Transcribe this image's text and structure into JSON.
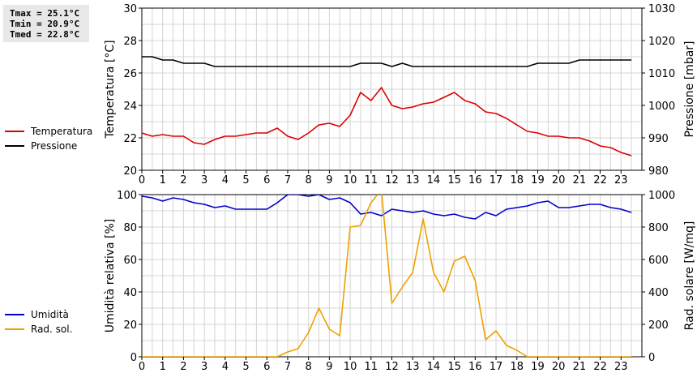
{
  "stats": {
    "tmax": "Tmax = 25.1°C",
    "tmin": "Tmin = 20.9°C",
    "tmed": "Tmed = 22.8°C"
  },
  "chart_data": [
    {
      "type": "line",
      "xlabel": "",
      "xlim": [
        0,
        24
      ],
      "x_ticks": [
        "0",
        "1",
        "2",
        "3",
        "4",
        "5",
        "6",
        "7",
        "8",
        "9",
        "10",
        "11",
        "12",
        "13",
        "14",
        "15",
        "16",
        "17",
        "18",
        "19",
        "20",
        "21",
        "22",
        "23"
      ],
      "ylabel_left": "Temperatura [°C]",
      "ylim_left": [
        20,
        30
      ],
      "yticks_left": [
        "20",
        "22",
        "24",
        "26",
        "28",
        "30"
      ],
      "ylabel_right": "Pressione [mbar]",
      "ylim_right": [
        980,
        1030
      ],
      "yticks_right": [
        "980",
        "990",
        "1000",
        "1010",
        "1020",
        "1030"
      ],
      "grid": true,
      "legend_position": "left",
      "series": [
        {
          "name": "Temperatura",
          "axis": "left",
          "color": "#dd0000",
          "x": [
            0,
            0.5,
            1,
            1.5,
            2,
            2.5,
            3,
            3.5,
            4,
            4.5,
            5,
            5.5,
            6,
            6.5,
            7,
            7.5,
            8,
            8.5,
            9,
            9.5,
            10,
            10.5,
            11,
            11.5,
            12,
            12.5,
            13,
            13.5,
            14,
            14.5,
            15,
            15.5,
            16,
            16.5,
            17,
            17.5,
            18,
            18.5,
            19,
            19.5,
            20,
            20.5,
            21,
            21.5,
            22,
            22.5,
            23,
            23.5
          ],
          "values": [
            22.3,
            22.1,
            22.2,
            22.1,
            22.1,
            21.7,
            21.6,
            21.9,
            22.1,
            22.1,
            22.2,
            22.3,
            22.3,
            22.6,
            22.1,
            21.9,
            22.3,
            22.8,
            22.9,
            22.7,
            23.4,
            24.8,
            24.3,
            25.1,
            24.0,
            23.8,
            23.9,
            24.1,
            24.2,
            24.5,
            24.8,
            24.3,
            24.1,
            23.6,
            23.5,
            23.2,
            22.8,
            22.4,
            22.3,
            22.1,
            22.1,
            22.0,
            22.0,
            21.8,
            21.5,
            21.4,
            21.1,
            20.9
          ]
        },
        {
          "name": "Pressione",
          "axis": "right",
          "color": "#000000",
          "x": [
            0,
            0.5,
            1,
            1.5,
            2,
            2.5,
            3,
            3.5,
            4,
            4.5,
            5,
            5.5,
            6,
            6.5,
            7,
            7.5,
            8,
            8.5,
            9,
            9.5,
            10,
            10.5,
            11,
            11.5,
            12,
            12.5,
            13,
            13.5,
            14,
            14.5,
            15,
            15.5,
            16,
            16.5,
            17,
            17.5,
            18,
            18.5,
            19,
            19.5,
            20,
            20.5,
            21,
            21.5,
            22,
            22.5,
            23,
            23.5
          ],
          "values": [
            1015,
            1015,
            1014,
            1014,
            1013,
            1013,
            1013,
            1012,
            1012,
            1012,
            1012,
            1012,
            1012,
            1012,
            1012,
            1012,
            1012,
            1012,
            1012,
            1012,
            1012,
            1013,
            1013,
            1013,
            1012,
            1013,
            1012,
            1012,
            1012,
            1012,
            1012,
            1012,
            1012,
            1012,
            1012,
            1012,
            1012,
            1012,
            1013,
            1013,
            1013,
            1013,
            1014,
            1014,
            1014,
            1014,
            1014,
            1014
          ]
        }
      ]
    },
    {
      "type": "line",
      "xlabel": "",
      "xlim": [
        0,
        24
      ],
      "x_ticks": [
        "0",
        "1",
        "2",
        "3",
        "4",
        "5",
        "6",
        "7",
        "8",
        "9",
        "10",
        "11",
        "12",
        "13",
        "14",
        "15",
        "16",
        "17",
        "18",
        "19",
        "20",
        "21",
        "22",
        "23"
      ],
      "ylabel_left": "Umidità relativa [%]",
      "ylim_left": [
        0,
        100
      ],
      "yticks_left": [
        "0",
        "20",
        "40",
        "60",
        "80",
        "100"
      ],
      "ylabel_right": "Rad. solare [W/mq]",
      "ylim_right": [
        0,
        1000
      ],
      "yticks_right": [
        "0",
        "200",
        "400",
        "600",
        "800",
        "1000"
      ],
      "grid": true,
      "legend_position": "left",
      "series": [
        {
          "name": "Umidità",
          "axis": "left",
          "color": "#0000cc",
          "x": [
            0,
            0.5,
            1,
            1.5,
            2,
            2.5,
            3,
            3.5,
            4,
            4.5,
            5,
            5.5,
            6,
            6.5,
            7,
            7.5,
            8,
            8.5,
            9,
            9.5,
            10,
            10.5,
            11,
            11.5,
            12,
            12.5,
            13,
            13.5,
            14,
            14.5,
            15,
            15.5,
            16,
            16.5,
            17,
            17.5,
            18,
            18.5,
            19,
            19.5,
            20,
            20.5,
            21,
            21.5,
            22,
            22.5,
            23,
            23.5
          ],
          "values": [
            99,
            98,
            96,
            98,
            97,
            95,
            94,
            92,
            93,
            91,
            91,
            91,
            91,
            95,
            100,
            100,
            99,
            100,
            97,
            98,
            95,
            88,
            89,
            87,
            91,
            90,
            89,
            90,
            88,
            87,
            88,
            86,
            85,
            89,
            87,
            91,
            92,
            93,
            95,
            96,
            92,
            92,
            93,
            94,
            94,
            92,
            91,
            89
          ]
        },
        {
          "name": "Rad. sol.",
          "axis": "right",
          "color": "#f0a000",
          "x": [
            0,
            0.5,
            1,
            1.5,
            2,
            2.5,
            3,
            3.5,
            4,
            4.5,
            5,
            5.5,
            6,
            6.5,
            7,
            7.5,
            8,
            8.5,
            9,
            9.5,
            10,
            10.5,
            11,
            11.5,
            12,
            12.5,
            13,
            13.5,
            14,
            14.5,
            15,
            15.5,
            16,
            16.5,
            17,
            17.5,
            18,
            18.5,
            19,
            19.5,
            20,
            20.5,
            21,
            21.5,
            22,
            22.5,
            23,
            23.5
          ],
          "values": [
            0,
            0,
            0,
            0,
            0,
            0,
            0,
            0,
            0,
            0,
            0,
            0,
            0,
            0,
            30,
            50,
            150,
            300,
            170,
            130,
            800,
            810,
            950,
            1030,
            330,
            430,
            520,
            850,
            520,
            400,
            590,
            620,
            470,
            105,
            160,
            70,
            40,
            0,
            0,
            0,
            0,
            0,
            0,
            0,
            0,
            0,
            0,
            0
          ]
        }
      ]
    }
  ]
}
